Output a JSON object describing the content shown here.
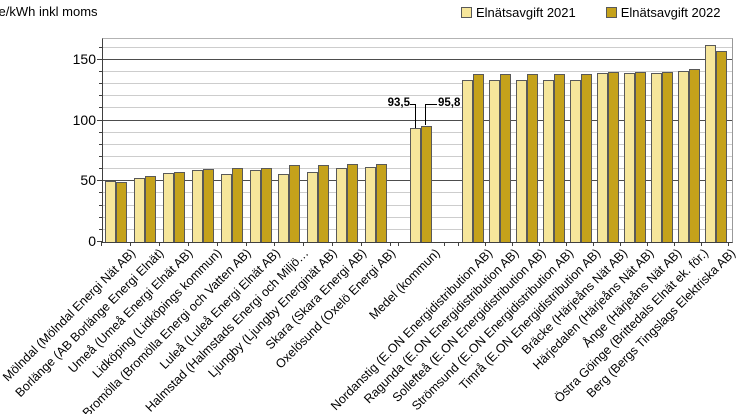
{
  "y_axis_unit": "öre/kWh inkl moms",
  "legend": {
    "items": [
      {
        "label": "Elnätsavgift 2021",
        "color": "#F6E69B"
      },
      {
        "label": "Elnätsavgift 2022",
        "color": "#C5A21B"
      }
    ]
  },
  "annotations": {
    "medel_2021": "93,5",
    "medel_2022": "95,8"
  },
  "chart_data": {
    "type": "bar",
    "title": "",
    "ylabel": "öre/kWh inkl moms",
    "ylim": [
      0,
      167
    ],
    "yticks": [
      0,
      50,
      100,
      150
    ],
    "minor_grid_step": 10,
    "grid": true,
    "legend_position": "top-right",
    "series_names": [
      "Elnätsavgift 2021",
      "Elnätsavgift 2022"
    ],
    "series_colors": [
      "#F6E69B",
      "#C5A21B"
    ],
    "groups": [
      {
        "label": "Mölndal (Mölndal Energi Nät AB)",
        "block": "left",
        "values": [
          50,
          49
        ]
      },
      {
        "label": "Borlänge (AB Borlänge Energi Elnät)",
        "block": "left",
        "values": [
          53,
          54
        ]
      },
      {
        "label": "Umeå (Umeå Energi Elnät AB)",
        "block": "left",
        "values": [
          57,
          58
        ]
      },
      {
        "label": "Lidköping (Lidköpings kommun)",
        "block": "left",
        "values": [
          59,
          60
        ]
      },
      {
        "label": "Bromölla (Bromölla Energi och Vatten AB)",
        "block": "left",
        "values": [
          56,
          61
        ]
      },
      {
        "label": "Luleå (Luleå Energi Elnät AB)",
        "block": "left",
        "values": [
          59,
          61
        ]
      },
      {
        "label": "Halmstad (Halmstads Energi och Miljö…",
        "block": "left",
        "values": [
          56,
          63
        ]
      },
      {
        "label": "Ljungby (Ljungby Energinät AB)",
        "block": "left",
        "values": [
          58,
          63
        ]
      },
      {
        "label": "Skara (Skara Energi AB)",
        "block": "left",
        "values": [
          61,
          64
        ]
      },
      {
        "label": "Oxelösund (Oxelö Energi AB)",
        "block": "left",
        "values": [
          62,
          64
        ]
      },
      {
        "label": "Medel (kommun)",
        "block": "medel",
        "values": [
          93.5,
          95.8
        ],
        "data_labels": [
          "93,5",
          "95,8"
        ]
      },
      {
        "label": "Nordanstig (E.ON Energidistribution AB)",
        "block": "right",
        "values": [
          133,
          138
        ]
      },
      {
        "label": "Ragunda (E.ON Energidistribution AB)",
        "block": "right",
        "values": [
          133,
          138
        ]
      },
      {
        "label": "Sollefteå (E.ON Energidistribution AB)",
        "block": "right",
        "values": [
          133,
          138
        ]
      },
      {
        "label": "Strömsund (E.ON Energidistribution AB)",
        "block": "right",
        "values": [
          133,
          138
        ]
      },
      {
        "label": "Timrå (E.ON Energidistribution AB)",
        "block": "right",
        "values": [
          133,
          138
        ]
      },
      {
        "label": "Bräcke (Härjeåns Nät AB)",
        "block": "right",
        "values": [
          139,
          140
        ]
      },
      {
        "label": "Härjedalen (Härjeåns Nät AB)",
        "block": "right",
        "values": [
          139,
          140
        ]
      },
      {
        "label": "Ånge (Härjeåns Nät AB)",
        "block": "right",
        "values": [
          139,
          140
        ]
      },
      {
        "label": "Östra Göinge (Brittedals Elnät ek. för.)",
        "block": "right",
        "values": [
          141,
          142
        ]
      },
      {
        "label": "Berg (Bergs Tingslags Elektriska AB)",
        "block": "right",
        "values": [
          162,
          157
        ]
      }
    ]
  }
}
